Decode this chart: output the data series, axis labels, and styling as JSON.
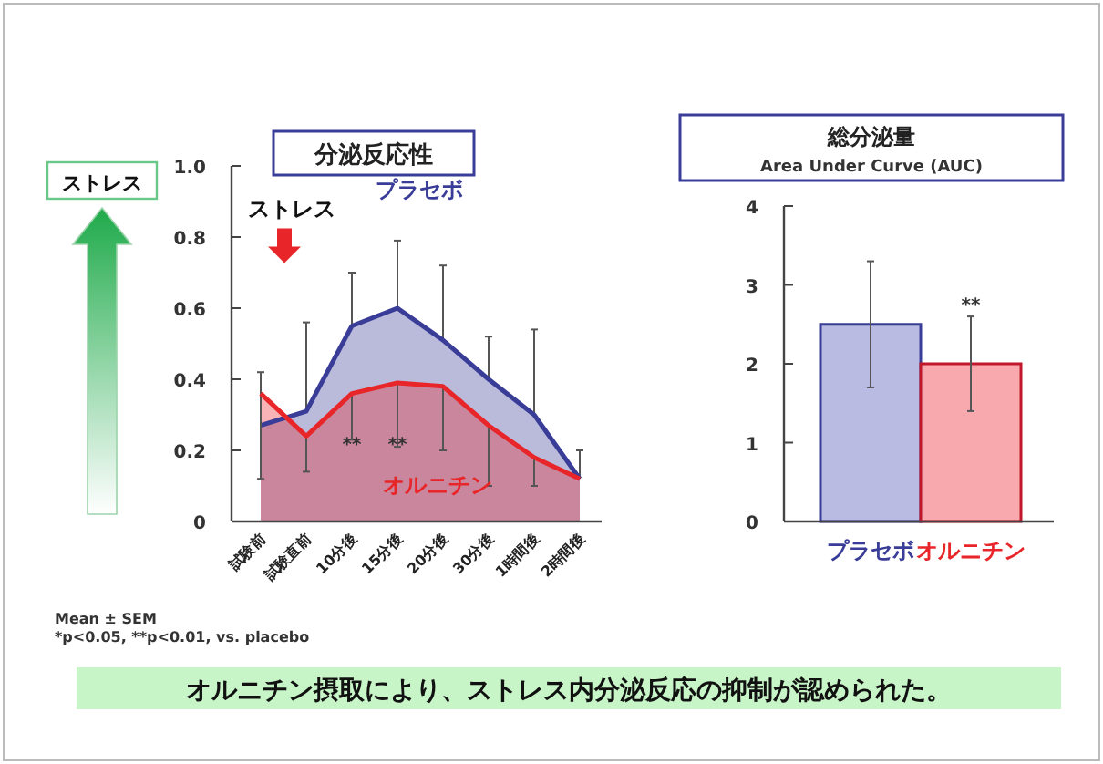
{
  "chart_data": [
    {
      "type": "area",
      "title": "分泌反応性",
      "categories": [
        "試験前",
        "試験直前",
        "10分後",
        "15分後",
        "20分後",
        "30分後",
        "1時間後",
        "2時間後"
      ],
      "ylim": [
        0,
        1
      ],
      "yticks": [
        0,
        {
          "value": 0.2,
          "label": "0.2"
        },
        {
          "value": 0.4,
          "label": "0.4"
        },
        {
          "value": 0.6,
          "label": "0.6"
        },
        {
          "value": 0.8,
          "label": "0.8"
        },
        {
          "value": 1,
          "label": "1.0"
        }
      ],
      "grid": false,
      "series": [
        {
          "name": "プラセボ",
          "color": "#3a3d98",
          "values": [
            0.27,
            0.31,
            0.55,
            0.6,
            0.51,
            0.4,
            0.3,
            0.12
          ],
          "errors": [
            [
              0.27,
              0.42
            ],
            [
              0.31,
              0.56
            ],
            [
              0.55,
              0.7
            ],
            [
              0.6,
              0.79
            ],
            [
              0.51,
              0.72
            ],
            [
              0.4,
              0.52
            ],
            [
              0.3,
              0.54
            ],
            [
              0.12,
              0.2
            ]
          ]
        },
        {
          "name": "オルニチン",
          "color": "#e8262a",
          "values": [
            0.36,
            0.24,
            0.36,
            0.39,
            0.38,
            0.27,
            0.18,
            0.12
          ],
          "errors": [
            [
              0.12,
              0.36
            ],
            [
              0.14,
              0.24
            ],
            [
              0.23,
              0.36
            ],
            [
              0.21,
              0.39
            ],
            [
              0.2,
              0.38
            ],
            [
              0.1,
              0.27
            ],
            [
              0.1,
              0.18
            ],
            null
          ]
        }
      ],
      "annotations": [
        "ストレス",
        "**",
        "**",
        "ストレス",
        "Mean ± SEM",
        "*p<0.05, **p<0.01, vs. placebo",
        "オルニチン摂取により、ストレス内分泌反応の抑制が認められた。"
      ]
    },
    {
      "type": "bar",
      "title": "総分泌量",
      "subtitle": "Area Under Curve (AUC)",
      "categories": [
        "プラセボ",
        "オルニチン"
      ],
      "values": [
        2.5,
        2.0
      ],
      "errors": [
        0.8,
        0.6
      ],
      "colors": [
        "#b9bbe3",
        "#f7a9ae"
      ],
      "ylim": [
        0,
        4
      ],
      "yticks": [
        0,
        1,
        2,
        3,
        4
      ],
      "grid": false,
      "annotations": [
        "**"
      ]
    }
  ]
}
